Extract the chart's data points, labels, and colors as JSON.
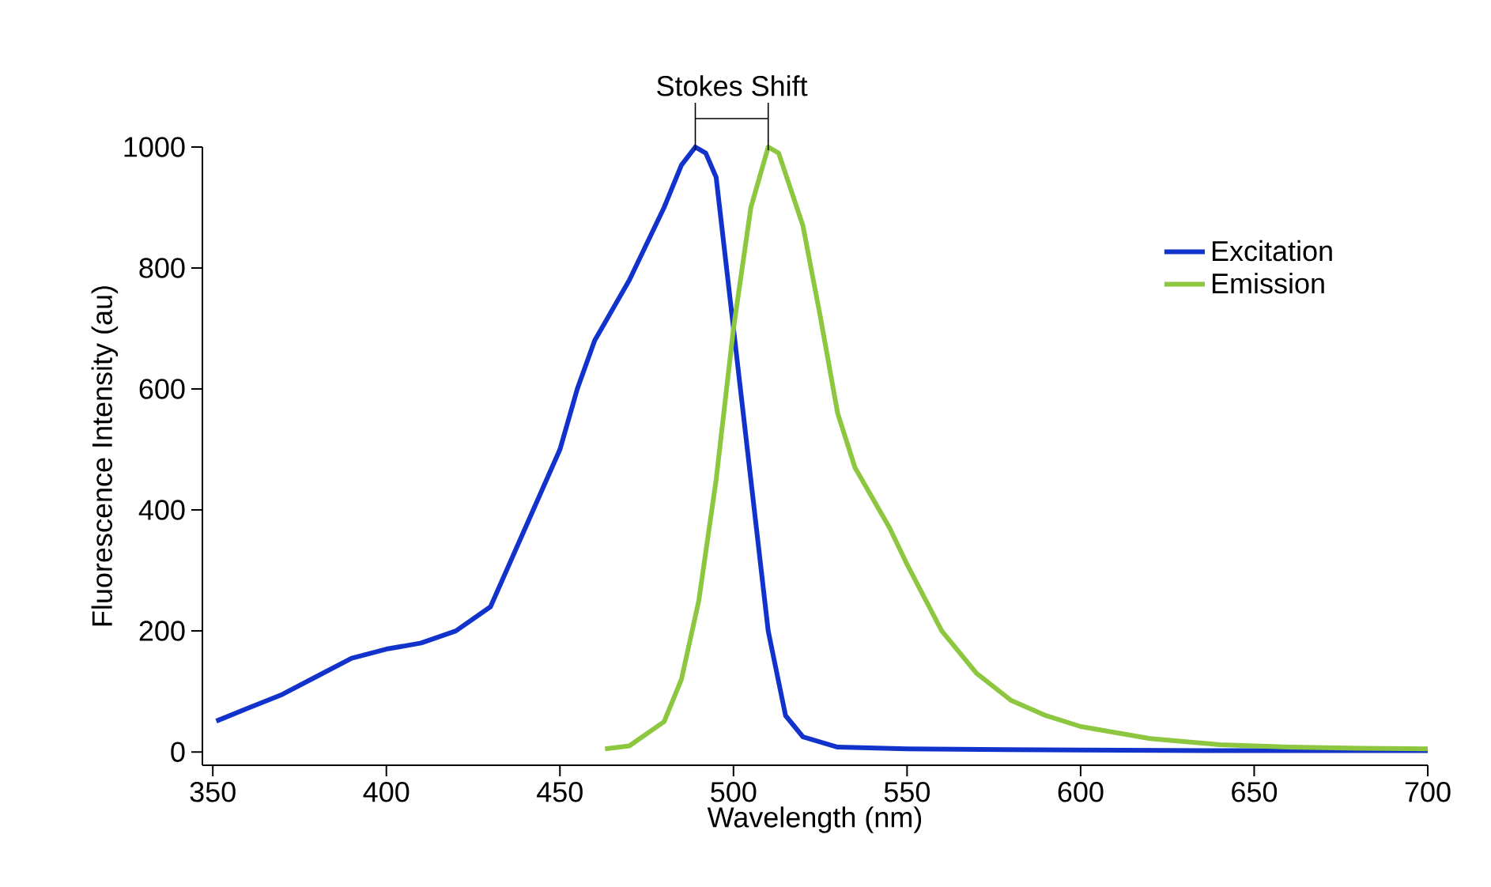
{
  "chart_data": {
    "type": "line",
    "xlabel": "Wavelength (nm)",
    "ylabel": "Fluorescence Intensity (au)",
    "annotations": [
      {
        "text": "Stokes Shift",
        "x": 489,
        "y": 1000
      }
    ],
    "xlim": [
      347,
      700
    ],
    "ylim": [
      -22,
      1000
    ],
    "xticks": [
      350,
      400,
      450,
      500,
      550,
      600,
      650,
      700
    ],
    "yticks": [
      0,
      200,
      400,
      600,
      800,
      1000
    ],
    "legend": "top right",
    "grid": false,
    "series": [
      {
        "name": "Excitation",
        "color": "#1133cc",
        "x": [
          351,
          360,
          370,
          380,
          390,
          400,
          410,
          420,
          430,
          440,
          450,
          455,
          460,
          470,
          480,
          485,
          489,
          492,
          495,
          500,
          505,
          510,
          515,
          520,
          530,
          550,
          600,
          650,
          700
        ],
        "values": [
          51,
          72,
          95,
          125,
          155,
          170,
          180,
          200,
          240,
          370,
          500,
          600,
          680,
          780,
          900,
          970,
          1000,
          990,
          950,
          700,
          450,
          200,
          60,
          25,
          8,
          5,
          3,
          2,
          2
        ]
      },
      {
        "name": "Emission",
        "color": "#8dc63f",
        "x": [
          463,
          470,
          480,
          485,
          490,
          495,
          500,
          505,
          510,
          513,
          520,
          525,
          530,
          535,
          540,
          545,
          550,
          560,
          570,
          580,
          590,
          600,
          620,
          640,
          660,
          680,
          700
        ],
        "values": [
          5,
          10,
          50,
          120,
          250,
          450,
          700,
          900,
          1000,
          990,
          870,
          720,
          560,
          470,
          420,
          370,
          310,
          200,
          130,
          85,
          60,
          42,
          22,
          12,
          8,
          6,
          5
        ]
      }
    ]
  }
}
